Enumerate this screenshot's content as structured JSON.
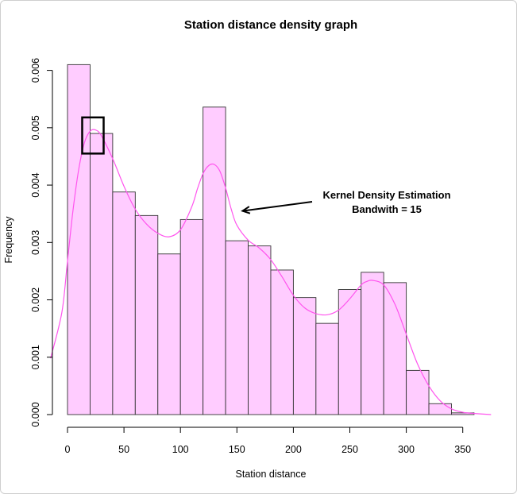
{
  "chart_data": {
    "type": "bar",
    "title": "Station distance density graph",
    "xlabel": "Station distance",
    "ylabel": "Frequency",
    "bin_width": 20,
    "bins": [
      {
        "start": 0,
        "end": 20,
        "value": 0.0061
      },
      {
        "start": 20,
        "end": 40,
        "value": 0.0049
      },
      {
        "start": 40,
        "end": 60,
        "value": 0.00388
      },
      {
        "start": 60,
        "end": 80,
        "value": 0.00347
      },
      {
        "start": 80,
        "end": 100,
        "value": 0.0028
      },
      {
        "start": 100,
        "end": 120,
        "value": 0.0034
      },
      {
        "start": 120,
        "end": 140,
        "value": 0.00536
      },
      {
        "start": 140,
        "end": 160,
        "value": 0.00303
      },
      {
        "start": 160,
        "end": 180,
        "value": 0.00294
      },
      {
        "start": 180,
        "end": 200,
        "value": 0.00252
      },
      {
        "start": 200,
        "end": 220,
        "value": 0.00204
      },
      {
        "start": 220,
        "end": 240,
        "value": 0.00159
      },
      {
        "start": 240,
        "end": 260,
        "value": 0.00218
      },
      {
        "start": 260,
        "end": 280,
        "value": 0.00248
      },
      {
        "start": 280,
        "end": 300,
        "value": 0.0023
      },
      {
        "start": 300,
        "end": 320,
        "value": 0.00077
      },
      {
        "start": 320,
        "end": 340,
        "value": 0.00019
      },
      {
        "start": 340,
        "end": 360,
        "value": 3e-05
      }
    ],
    "density_curve": {
      "bandwidth": 15,
      "x": [
        -15,
        -5,
        0,
        5,
        10,
        15,
        20,
        25,
        30,
        40,
        50,
        60,
        70,
        80,
        90,
        100,
        110,
        115,
        120,
        125,
        130,
        135,
        140,
        145,
        150,
        160,
        170,
        180,
        190,
        200,
        210,
        220,
        230,
        240,
        250,
        260,
        265,
        270,
        280,
        290,
        300,
        310,
        320,
        330,
        340,
        350,
        360,
        375
      ],
      "y": [
        0.00098,
        0.00178,
        0.00268,
        0.00358,
        0.00428,
        0.00474,
        0.00494,
        0.00496,
        0.00486,
        0.00446,
        0.00398,
        0.00358,
        0.00332,
        0.00316,
        0.0031,
        0.00322,
        0.00362,
        0.00393,
        0.0042,
        0.00434,
        0.00436,
        0.00424,
        0.00395,
        0.00358,
        0.0033,
        0.00304,
        0.0029,
        0.0027,
        0.0024,
        0.00208,
        0.00186,
        0.00176,
        0.00174,
        0.00182,
        0.00202,
        0.00226,
        0.00232,
        0.00234,
        0.00226,
        0.00192,
        0.0014,
        0.00088,
        0.0005,
        0.00024,
        0.0001,
        4e-05,
        2e-05,
        0.0
      ]
    },
    "x_ticks": [
      0,
      50,
      100,
      150,
      200,
      250,
      300,
      350
    ],
    "y_ticks": [
      0.0,
      0.001,
      0.002,
      0.003,
      0.004,
      0.005,
      0.006
    ],
    "y_tick_labels": [
      "0.000",
      "0.001",
      "0.002",
      "0.003",
      "0.004",
      "0.005",
      "0.006"
    ],
    "xlim": [
      0,
      360
    ],
    "ylim": [
      0,
      0.006
    ],
    "annotation": {
      "lines": [
        "Kernel Density Estimation",
        "Bandwith = 15"
      ],
      "arrow_target": {
        "x": 155,
        "y": 0.00355
      },
      "highlight_box": {
        "x0": 13,
        "x1": 32,
        "y0": 0.00455,
        "y1": 0.00518
      }
    },
    "grid": false,
    "colors": {
      "bar_fill": "#ffccff",
      "bar_stroke": "#333333",
      "density_line": "#ff55ee",
      "axis": "#000000"
    }
  }
}
